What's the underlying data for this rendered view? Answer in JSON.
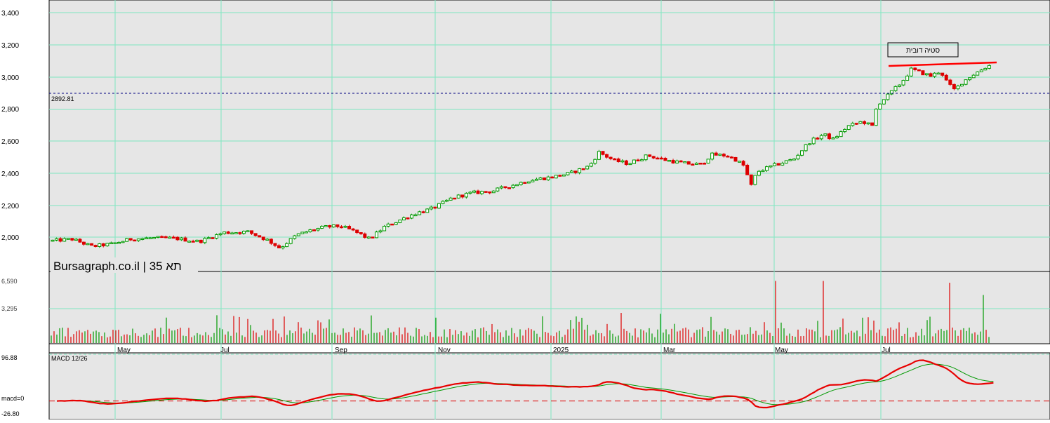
{
  "watermark": "Bursagraph.co.il | תא 35",
  "price_axis_ticks": [
    "3,400",
    "3,200",
    "3,000",
    "2,800",
    "2,600",
    "2,400",
    "2,200",
    "2,000"
  ],
  "volume_axis_ticks": [
    "6,590",
    "3,295"
  ],
  "macd": {
    "label": "MACD 12/26",
    "top_label": "96.88",
    "zero_label": "macd=0",
    "bottom_label": "-26.80"
  },
  "time_labels": [
    "May",
    "Jul",
    "Sep",
    "Nov",
    "2025",
    "Mar",
    "May",
    "Jul"
  ],
  "reference_line_label": "2892.81",
  "annotation": "סטיה דובית",
  "colors": {
    "background": "#e6e6e6",
    "grid": "#7fe7c0",
    "up_candle": "#009900",
    "down_candle": "#dd0000",
    "reference_line": "#000080",
    "trend_line": "#ff0000",
    "macd_line": "#e80000",
    "signal_line": "#009900"
  },
  "chart_data": [
    {
      "type": "candlestick",
      "name": "price",
      "ylim": [
        1950,
        3400
      ],
      "reference_line": 2892.81,
      "annotation": "סטיה דובית",
      "x_labels": [
        "May",
        "Jul",
        "Sep",
        "Nov",
        "2025",
        "Mar",
        "May",
        "Jul"
      ],
      "close_path": [
        [
          0,
          1995
        ],
        [
          20,
          2005
        ],
        [
          40,
          1960
        ],
        [
          60,
          1975
        ],
        [
          80,
          2005
        ],
        [
          100,
          2012
        ],
        [
          125,
          2010
        ],
        [
          150,
          1990
        ],
        [
          175,
          2045
        ],
        [
          200,
          2050
        ],
        [
          220,
          2000
        ],
        [
          233,
          1950
        ],
        [
          250,
          2030
        ],
        [
          265,
          2060
        ],
        [
          280,
          2080
        ],
        [
          295,
          2085
        ],
        [
          310,
          2050
        ],
        [
          325,
          2005
        ],
        [
          340,
          2080
        ],
        [
          355,
          2120
        ],
        [
          370,
          2160
        ],
        [
          390,
          2195
        ],
        [
          410,
          2260
        ],
        [
          430,
          2290
        ],
        [
          450,
          2300
        ],
        [
          470,
          2335
        ],
        [
          490,
          2370
        ],
        [
          510,
          2385
        ],
        [
          530,
          2410
        ],
        [
          550,
          2455
        ],
        [
          560,
          2540
        ],
        [
          575,
          2490
        ],
        [
          590,
          2470
        ],
        [
          610,
          2520
        ],
        [
          630,
          2490
        ],
        [
          650,
          2470
        ],
        [
          665,
          2465
        ],
        [
          675,
          2525
        ],
        [
          690,
          2520
        ],
        [
          700,
          2495
        ],
        [
          710,
          2450
        ],
        [
          715,
          2320
        ],
        [
          722,
          2420
        ],
        [
          740,
          2460
        ],
        [
          760,
          2500
        ],
        [
          775,
          2600
        ],
        [
          790,
          2650
        ],
        [
          800,
          2620
        ],
        [
          815,
          2700
        ],
        [
          830,
          2730
        ],
        [
          840,
          2700
        ],
        [
          845,
          2830
        ],
        [
          858,
          2900
        ],
        [
          870,
          2970
        ],
        [
          880,
          3050
        ],
        [
          890,
          3030
        ],
        [
          900,
          3010
        ],
        [
          910,
          3040
        ],
        [
          918,
          2960
        ],
        [
          925,
          2920
        ],
        [
          930,
          2960
        ],
        [
          940,
          3005
        ],
        [
          955,
          3060
        ],
        [
          962,
          3080
        ]
      ],
      "volume_ylim": [
        0,
        7000
      ],
      "volume_spike_values": [
        6590,
        6590,
        6400,
        5100,
        3200,
        3100,
        2800
      ]
    },
    {
      "type": "line",
      "name": "MACD 12/26",
      "ylim": [
        -26.8,
        96.88
      ],
      "zero_line": 0,
      "series": [
        {
          "name": "MACD 12/26"
        },
        {
          "name": "signal"
        }
      ]
    }
  ]
}
